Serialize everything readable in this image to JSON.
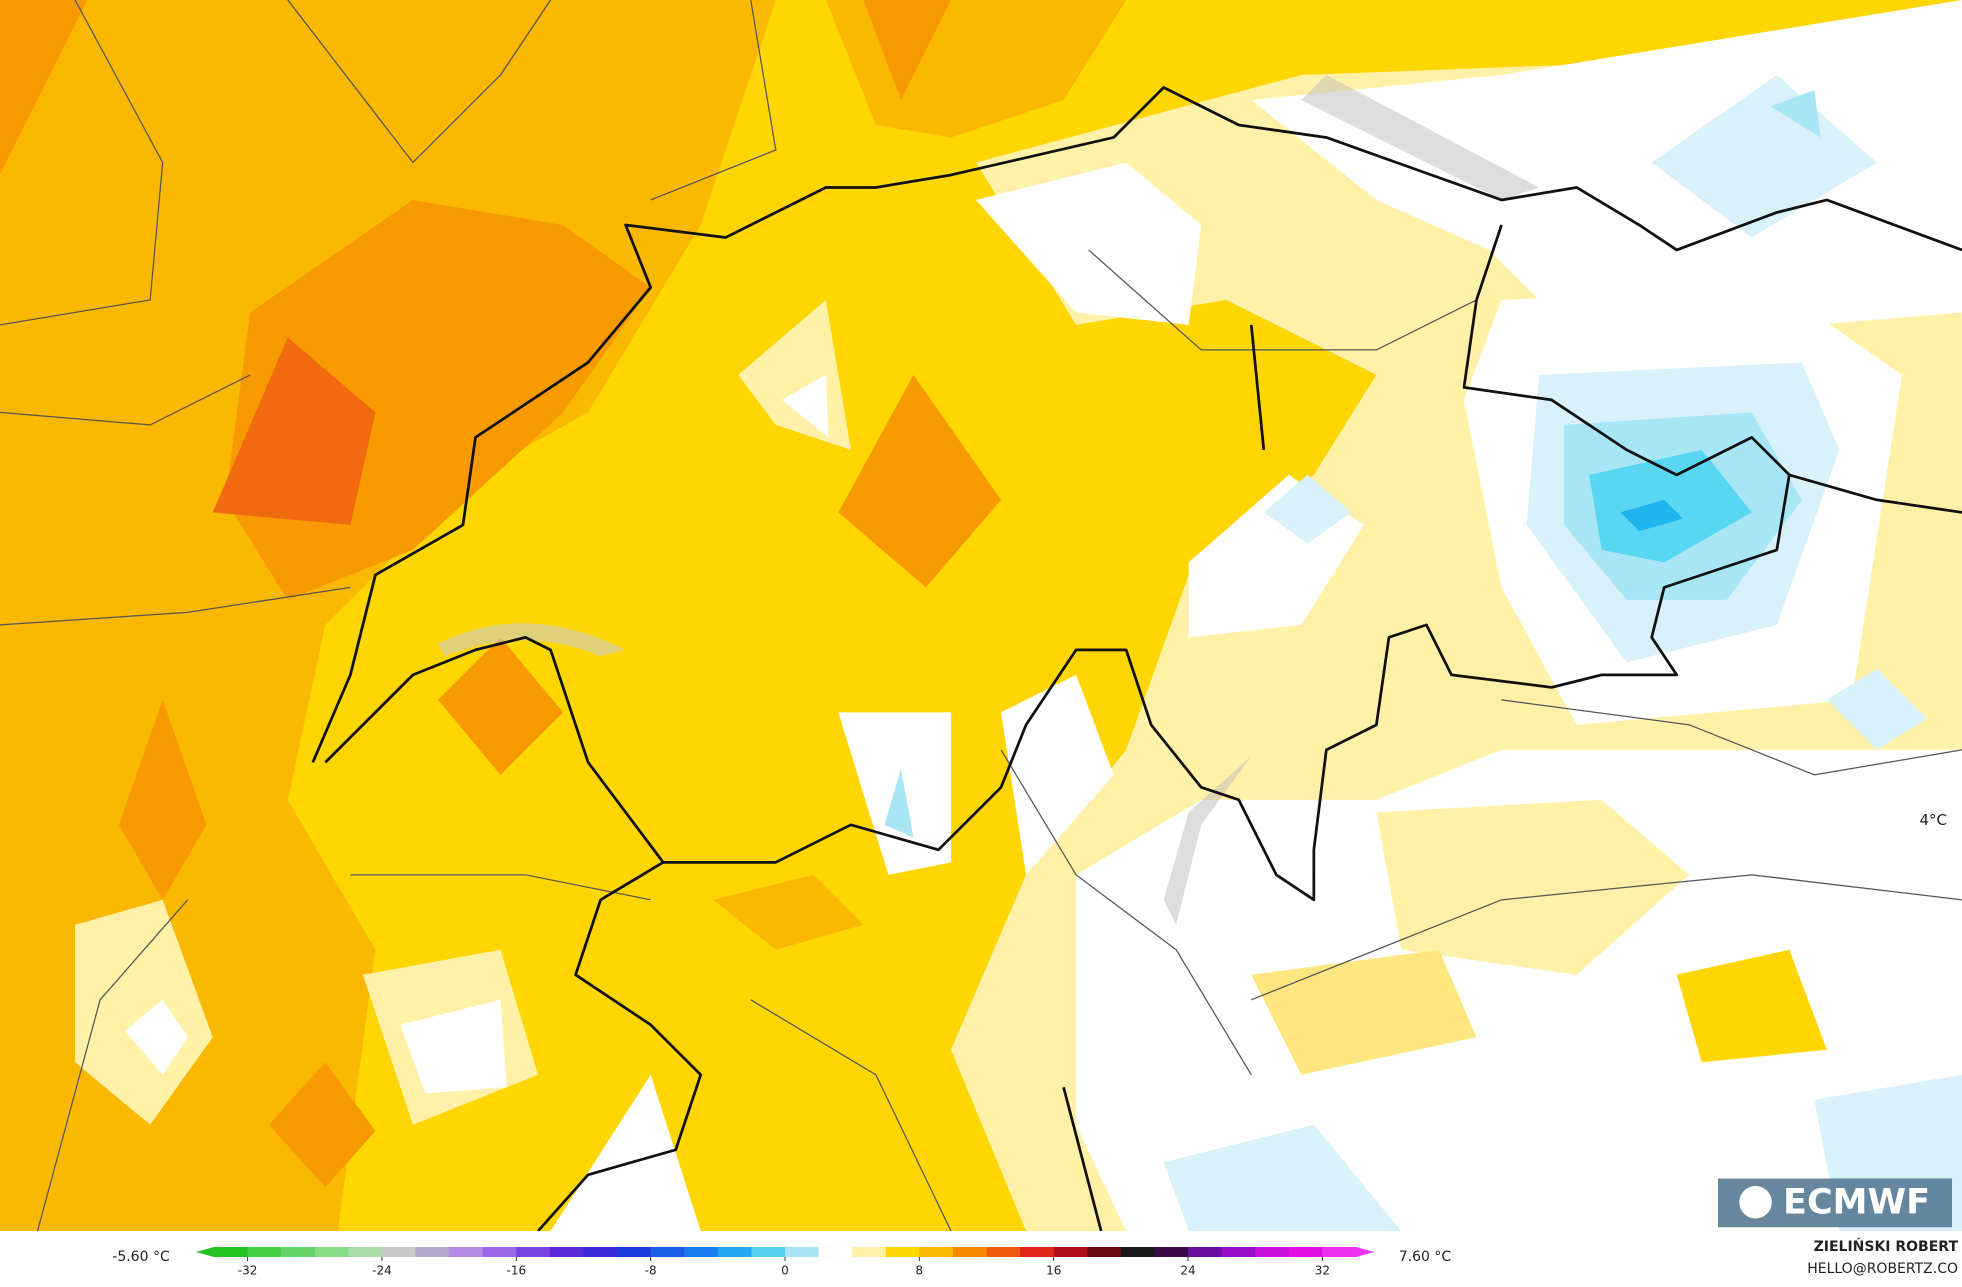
{
  "map": {
    "annotation": "4°C",
    "logo": "ECMWF"
  },
  "legend": {
    "min_label": "-5.60 °C",
    "max_label": "7.60 °C",
    "lim": [
      -34,
      34
    ],
    "ticks": [
      -32,
      -24,
      -16,
      -8,
      0,
      8,
      16,
      24,
      32
    ],
    "colors": [
      "#22c322",
      "#44cc44",
      "#66d466",
      "#88dd88",
      "#aadcaa",
      "#c8c8c8",
      "#b0a8c8",
      "#b48ce8",
      "#9a66e8",
      "#7a44e0",
      "#5a2ad8",
      "#3a2ad8",
      "#1a3cdc",
      "#1a5ee8",
      "#1a80f0",
      "#22a8f2",
      "#55d0f2",
      "#a8e6f5",
      "#ffffff",
      "#fff2a8",
      "#ffd600",
      "#fbb800",
      "#f78a00",
      "#ef5a10",
      "#e02818",
      "#b0101c",
      "#6a0a14",
      "#1a1a1a",
      "#3a0a4a",
      "#6a10a0",
      "#9a10c8",
      "#c810d8",
      "#e010e0",
      "#f030f0"
    ],
    "author": "ZIELIŃSKI ROBERT",
    "contact": "HELLO@ROBERTZ.CO"
  }
}
